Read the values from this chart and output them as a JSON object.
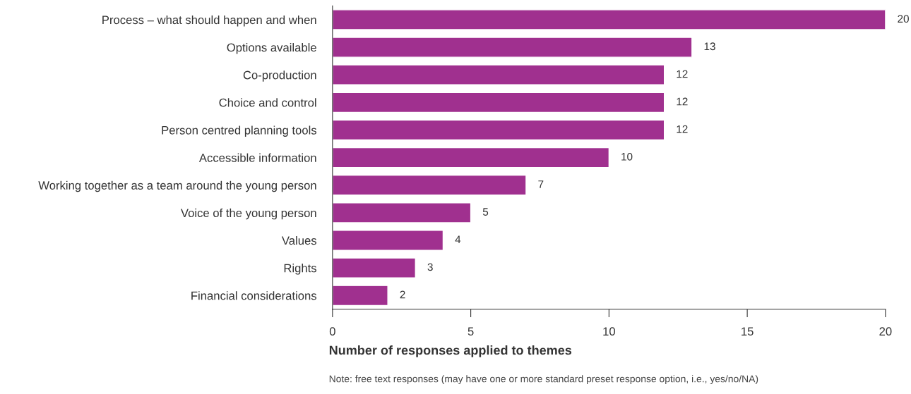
{
  "chart_data": {
    "type": "bar",
    "orientation": "horizontal",
    "categories": [
      "Process – what should happen and when",
      "Options available",
      "Co-production",
      "Choice and control",
      "Person centred planning tools",
      "Accessible information",
      "Working together as a team around the young person",
      "Voice of the young person",
      "Values",
      "Rights",
      "Financial considerations"
    ],
    "values": [
      20,
      13,
      12,
      12,
      12,
      10,
      7,
      5,
      4,
      3,
      2
    ],
    "color": "#a0308f",
    "xlim": [
      0,
      20
    ],
    "xticks": [
      0,
      5,
      10,
      15,
      20
    ],
    "xlabel": "Number of responses applied to themes",
    "annotations": [
      "Note: free text responses (may have one or more standard preset response option, i.e., yes/no/NA)"
    ],
    "data_labels": true,
    "grid": false,
    "legend": false
  }
}
